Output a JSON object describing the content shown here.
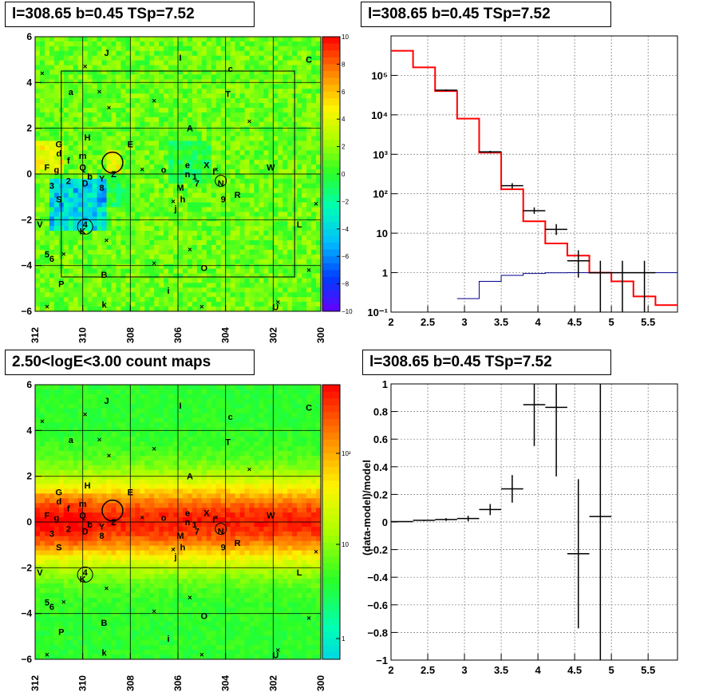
{
  "panels": {
    "top_left_title": "l=308.65 b=0.45 TSp=7.52",
    "top_right_title": "l=308.65 b=0.45 TSp=7.52",
    "bottom_left_title": "2.50<logE<3.00 count maps",
    "bottom_right_title": "l=308.65 b=0.45 TSp=7.52"
  },
  "map_axes": {
    "x_ticks": [
      "312",
      "310",
      "308",
      "306",
      "304",
      "302",
      "300"
    ],
    "y_ticks": [
      "6",
      "4",
      "2",
      "0",
      "−2",
      "−4",
      "−6"
    ],
    "x_range": [
      312,
      300
    ],
    "y_range": [
      -6,
      6
    ]
  },
  "residual_map": {
    "colorbar_ticks": [
      "10",
      "8",
      "6",
      "4",
      "2",
      "0",
      "−2",
      "−4",
      "−6",
      "−8",
      "−10"
    ],
    "colorbar_range": [
      -10,
      10
    ]
  },
  "count_map": {
    "colorbar_ticks": [
      "10²",
      "10",
      "1"
    ]
  },
  "source_labels": [
    {
      "text": "J",
      "l": 309.0,
      "b": 5.3
    },
    {
      "text": "I",
      "l": 305.9,
      "b": 5.1
    },
    {
      "text": "C",
      "l": 300.5,
      "b": 5.0
    },
    {
      "text": "c",
      "l": 303.8,
      "b": 4.6
    },
    {
      "text": "a",
      "l": 310.5,
      "b": 3.6
    },
    {
      "text": "T",
      "l": 303.9,
      "b": 3.5
    },
    {
      "text": "A",
      "l": 305.5,
      "b": 2.0
    },
    {
      "text": "H",
      "l": 309.8,
      "b": 1.6
    },
    {
      "text": "E",
      "l": 308.0,
      "b": 1.3
    },
    {
      "text": "G",
      "l": 311.0,
      "b": 1.3
    },
    {
      "text": "d",
      "l": 311.0,
      "b": 0.9
    },
    {
      "text": "m",
      "l": 310.0,
      "b": 0.8
    },
    {
      "text": "f",
      "l": 310.6,
      "b": 0.6
    },
    {
      "text": "F",
      "l": 311.5,
      "b": 0.3
    },
    {
      "text": "g",
      "l": 311.1,
      "b": 0.2
    },
    {
      "text": "Q",
      "l": 310.0,
      "b": 0.3
    },
    {
      "text": "X",
      "l": 304.8,
      "b": 0.4
    },
    {
      "text": "W",
      "l": 302.1,
      "b": 0.3
    },
    {
      "text": "e",
      "l": 305.6,
      "b": 0.4
    },
    {
      "text": "o",
      "l": 306.6,
      "b": 0.2
    },
    {
      "text": "n",
      "l": 305.6,
      "b": 0.0
    },
    {
      "text": "1",
      "l": 305.3,
      "b": -0.1
    },
    {
      "text": "l",
      "l": 304.5,
      "b": 0.1
    },
    {
      "text": "b",
      "l": 309.7,
      "b": -0.1
    },
    {
      "text": "Z",
      "l": 308.7,
      "b": 0.0
    },
    {
      "text": "2",
      "l": 310.6,
      "b": -0.3
    },
    {
      "text": "Y",
      "l": 309.2,
      "b": -0.2
    },
    {
      "text": "D",
      "l": 309.9,
      "b": -0.4
    },
    {
      "text": "7",
      "l": 305.2,
      "b": -0.4
    },
    {
      "text": "3",
      "l": 311.3,
      "b": -0.5
    },
    {
      "text": "M",
      "l": 305.9,
      "b": -0.6
    },
    {
      "text": "N",
      "l": 304.2,
      "b": -0.4
    },
    {
      "text": "8",
      "l": 309.2,
      "b": -0.6
    },
    {
      "text": "R",
      "l": 303.5,
      "b": -0.9
    },
    {
      "text": "h",
      "l": 305.8,
      "b": -1.1
    },
    {
      "text": "9",
      "l": 304.1,
      "b": -1.1
    },
    {
      "text": "S",
      "l": 311.0,
      "b": -1.1
    },
    {
      "text": "j",
      "l": 306.1,
      "b": -1.5
    },
    {
      "text": "V",
      "l": 311.8,
      "b": -2.2
    },
    {
      "text": "4",
      "l": 309.9,
      "b": -2.2
    },
    {
      "text": "K",
      "l": 310.0,
      "b": -2.5
    },
    {
      "text": "L",
      "l": 300.9,
      "b": -2.2
    },
    {
      "text": "5",
      "l": 311.5,
      "b": -3.5
    },
    {
      "text": "6",
      "l": 311.3,
      "b": -3.7
    },
    {
      "text": "O",
      "l": 304.9,
      "b": -4.1
    },
    {
      "text": "B",
      "l": 309.1,
      "b": -4.4
    },
    {
      "text": "P",
      "l": 310.9,
      "b": -4.8
    },
    {
      "text": "i",
      "l": 306.4,
      "b": -5.1
    },
    {
      "text": "k",
      "l": 309.1,
      "b": -5.7
    },
    {
      "text": "U",
      "l": 301.9,
      "b": -5.8
    }
  ],
  "spectrum": {
    "x_ticks": [
      "2",
      "2.5",
      "3",
      "3.5",
      "4",
      "4.5",
      "5",
      "5.5"
    ],
    "y_ticks": [
      "10⁻¹",
      "1",
      "10",
      "10²",
      "10³",
      "10⁴",
      "10⁵"
    ]
  },
  "ratio": {
    "ylabel": "(data-model)/model",
    "x_ticks": [
      "2",
      "2.5",
      "3",
      "3.5",
      "4",
      "4.5",
      "5",
      "5.5"
    ],
    "y_ticks": [
      "1",
      "0.8",
      "0.6",
      "0.4",
      "0.2",
      "0",
      "−0.2",
      "−0.4",
      "−0.6",
      "−0.8",
      "−1"
    ]
  },
  "chart_data": [
    {
      "type": "heatmap",
      "title": "l=308.65 b=0.45 TSp=7.52",
      "xlim": [
        312,
        300
      ],
      "ylim": [
        -6,
        6
      ],
      "zlim": [
        -10,
        10
      ],
      "colorscale": "rainbow"
    },
    {
      "type": "line",
      "title": "l=308.65 b=0.45 TSp=7.52",
      "log_y": true,
      "xlim": [
        2,
        5.9
      ],
      "ylim": [
        0.1,
        1000000
      ],
      "grid": true,
      "bin_edges": [
        2.0,
        2.3,
        2.6,
        2.9,
        3.2,
        3.5,
        3.8,
        4.1,
        4.4,
        4.7,
        5.0,
        5.3,
        5.6,
        5.9
      ],
      "series": [
        {
          "color": "#ff0000",
          "values": [
            420000,
            160000,
            40000,
            8000,
            1100,
            130,
            20,
            5.5,
            2.7,
            1.0,
            0.6,
            0.25,
            0.15
          ]
        },
        {
          "color": "#00008b",
          "values": [
            null,
            null,
            null,
            0.22,
            0.6,
            0.85,
            0.95,
            0.99,
            1.0,
            1.0,
            1.0,
            1.0,
            1.0
          ]
        }
      ],
      "data_points": [
        {
          "x": 2.75,
          "y": 42000,
          "y_err": [
            40000,
            44000
          ]
        },
        {
          "x": 3.35,
          "y": 1150,
          "y_err": [
            1080,
            1220
          ]
        },
        {
          "x": 3.65,
          "y": 160,
          "y_err": [
            135,
            185
          ]
        },
        {
          "x": 3.95,
          "y": 37,
          "y_err": [
            31,
            45
          ]
        },
        {
          "x": 4.25,
          "y": 12.5,
          "y_err": [
            9.0,
            17
          ]
        },
        {
          "x": 4.55,
          "y": 2.0,
          "y_err": [
            0.75,
            3.7
          ]
        },
        {
          "x": 4.85,
          "y": 1.0,
          "y_err": [
            0.1,
            2.0
          ]
        },
        {
          "x": 5.15,
          "y": 1.0,
          "y_err": [
            0.1,
            2.0
          ]
        },
        {
          "x": 5.45,
          "y": 1.0,
          "y_err": [
            0.1,
            2.0
          ]
        }
      ]
    },
    {
      "type": "heatmap",
      "title": "2.50<logE<3.00 count maps",
      "xlim": [
        312,
        300
      ],
      "ylim": [
        -6,
        6
      ],
      "log_z": true,
      "colorscale": "rainbow"
    },
    {
      "type": "scatter",
      "title": "l=308.65 b=0.45 TSp=7.52",
      "ylabel": "(data-model)/model",
      "xlim": [
        2,
        5.9
      ],
      "ylim": [
        -1,
        1
      ],
      "grid": true,
      "points": [
        {
          "x": 2.15,
          "y": 0.003,
          "x_err": 0.15,
          "y_err": 0.003
        },
        {
          "x": 2.45,
          "y": 0.012,
          "x_err": 0.15,
          "y_err": 0.005
        },
        {
          "x": 2.75,
          "y": 0.018,
          "x_err": 0.15,
          "y_err": 0.01
        },
        {
          "x": 3.05,
          "y": 0.025,
          "x_err": 0.15,
          "y_err": 0.02
        },
        {
          "x": 3.35,
          "y": 0.09,
          "x_err": 0.15,
          "y_err": 0.04
        },
        {
          "x": 3.65,
          "y": 0.24,
          "x_err": 0.15,
          "y_err": 0.1
        },
        {
          "x": 3.95,
          "y": 0.85,
          "x_err": 0.15,
          "y_err": 0.3
        },
        {
          "x": 4.25,
          "y": 0.83,
          "x_err": 0.15,
          "y_err": 0.5
        },
        {
          "x": 4.55,
          "y": -0.23,
          "x_err": 0.15,
          "y_err": 0.54
        },
        {
          "x": 4.85,
          "y": 0.04,
          "x_err": 0.15,
          "y_err": 1.1
        }
      ]
    }
  ]
}
